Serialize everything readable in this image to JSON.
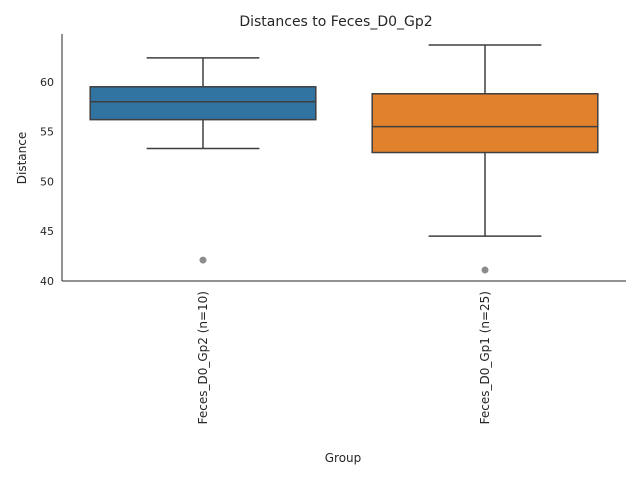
{
  "chart_data": {
    "type": "box",
    "title": "Distances to Feces_D0_Gp2",
    "xlabel": "Group",
    "ylabel": "Distance",
    "ylim": [
      40,
      64.8
    ],
    "yticks": [
      40,
      45,
      50,
      55,
      60
    ],
    "grid": false,
    "legend": "none",
    "categories": [
      "Feces_D0_Gp2 (n=10)",
      "Feces_D0_Gp1 (n=25)"
    ],
    "series": [
      {
        "category": "Feces_D0_Gp2 (n=10)",
        "color": "#3274a1",
        "whisker_low": 53.3,
        "q1": 56.2,
        "median": 58.0,
        "q3": 59.5,
        "whisker_high": 62.4,
        "outliers": [
          42.1
        ]
      },
      {
        "category": "Feces_D0_Gp1 (n=25)",
        "color": "#e1812c",
        "whisker_low": 44.5,
        "q1": 52.9,
        "median": 55.5,
        "q3": 58.8,
        "whisker_high": 63.7,
        "outliers": [
          41.1
        ]
      }
    ]
  },
  "colors": {
    "line": "#3f3f3f",
    "axis": "#262626",
    "outlier": "#8c8c8c"
  }
}
